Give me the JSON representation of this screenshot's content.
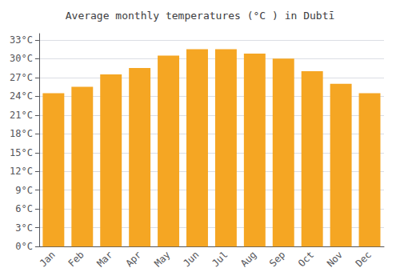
{
  "chart_data": {
    "type": "bar",
    "title": "Average monthly temperatures (°C ) in Dubtī",
    "categories": [
      "Jan",
      "Feb",
      "Mar",
      "Apr",
      "May",
      "Jun",
      "Jul",
      "Aug",
      "Sep",
      "Oct",
      "Nov",
      "Dec"
    ],
    "values": [
      24.5,
      25.5,
      27.5,
      28.5,
      30.5,
      31.5,
      31.5,
      30.8,
      30.0,
      28.0,
      26.0,
      24.5
    ],
    "color": "#F5A623",
    "ylim": [
      0,
      34
    ],
    "yticks": [
      {
        "value": 0,
        "label": "0°C"
      },
      {
        "value": 3,
        "label": "3°C"
      },
      {
        "value": 6,
        "label": "6°C"
      },
      {
        "value": 9,
        "label": "9°C"
      },
      {
        "value": 12,
        "label": "12°C"
      },
      {
        "value": 15,
        "label": "15°C"
      },
      {
        "value": 18,
        "label": "18°C"
      },
      {
        "value": 21,
        "label": "21°C"
      },
      {
        "value": 24,
        "label": "24°C"
      },
      {
        "value": 27,
        "label": "27°C"
      },
      {
        "value": 30,
        "label": "30°C"
      },
      {
        "value": 33,
        "label": "33°C"
      }
    ],
    "grid": true
  }
}
